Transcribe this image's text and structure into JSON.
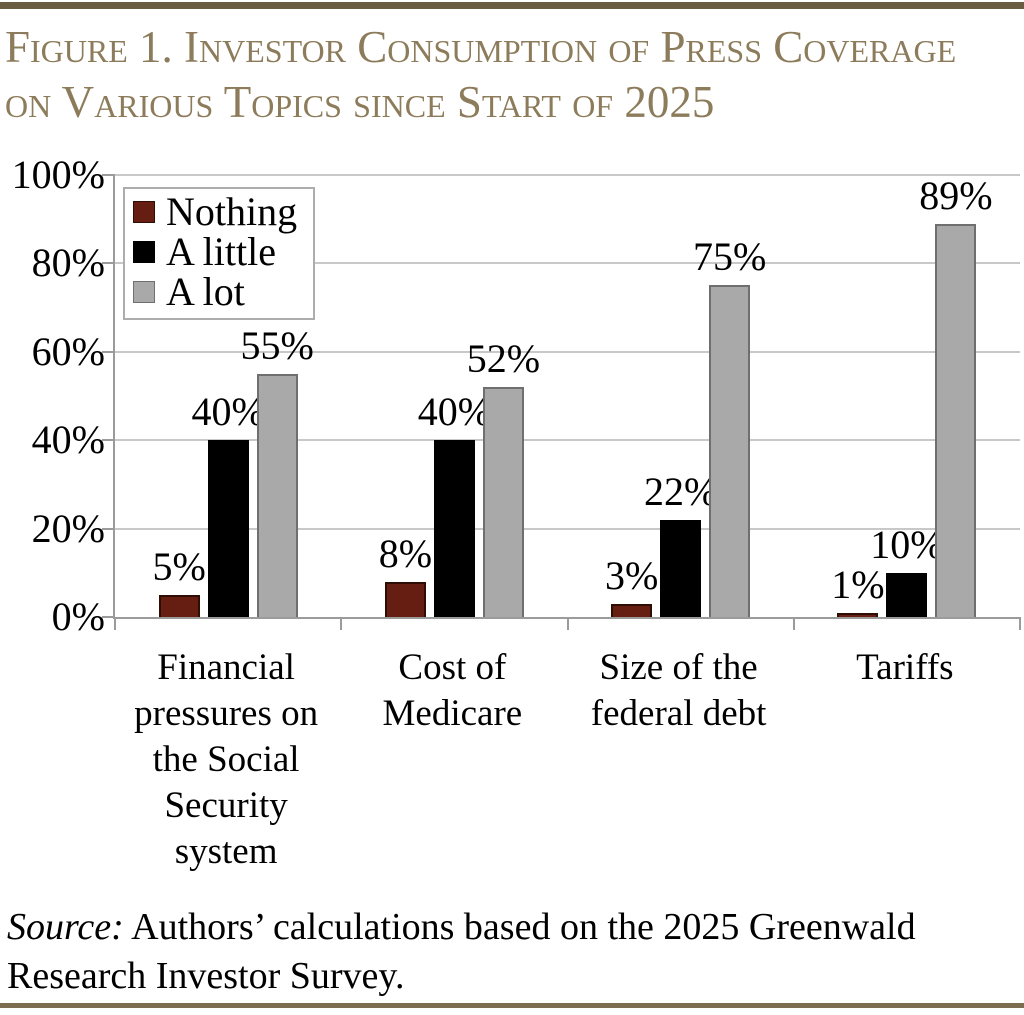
{
  "page": {
    "title_line1": "Figure 1. Investor Consumption of Press Coverage",
    "title_line2": "on Various Topics since Start of 2025",
    "source_label": "Source:",
    "source_text": " Authors’ calculations based on the 2025 Greenwald Research Investor Survey.",
    "colors": {
      "title_text": "#8d7c5b",
      "top_rule": "#6a5c41",
      "bottom_rule": "#7c6d50",
      "axis": "#9b9b9b",
      "gridline": "#c8c8c8"
    }
  },
  "chart_data": {
    "type": "bar",
    "title": "Figure 1. Investor Consumption of Press Coverage on Various Topics since Start of 2025",
    "xlabel": "",
    "ylabel": "",
    "ylim": [
      0,
      100
    ],
    "grid": true,
    "legend_position": "top-left",
    "categories": [
      "Financial pressures on the Social Security system",
      "Cost of Medicare",
      "Size of the federal debt",
      "Tariffs"
    ],
    "category_lines": [
      [
        "Financial",
        "pressures on",
        "the Social",
        "Security",
        "system"
      ],
      [
        "Cost of",
        "Medicare"
      ],
      [
        "Size of the",
        "federal debt"
      ],
      [
        "Tariffs"
      ]
    ],
    "series": [
      {
        "name": "Nothing",
        "color": "#661e12",
        "border": "#2e0d05",
        "values": [
          5,
          8,
          3,
          1
        ]
      },
      {
        "name": "A little",
        "color": "#000000",
        "border": "#000000",
        "values": [
          40,
          40,
          22,
          10
        ]
      },
      {
        "name": "A lot",
        "color": "#a9a9a9",
        "border": "#6f6f6f",
        "values": [
          55,
          52,
          75,
          89
        ]
      }
    ],
    "value_label_format": "{v}%",
    "y_ticks": [
      100,
      80,
      60,
      40,
      20,
      0
    ],
    "y_tick_labels": [
      "100%",
      "80%",
      "60%",
      "40%",
      "20%",
      "0%"
    ],
    "source": "Source: Authors’ calculations based on the 2025 Greenwald Research Investor Survey."
  }
}
